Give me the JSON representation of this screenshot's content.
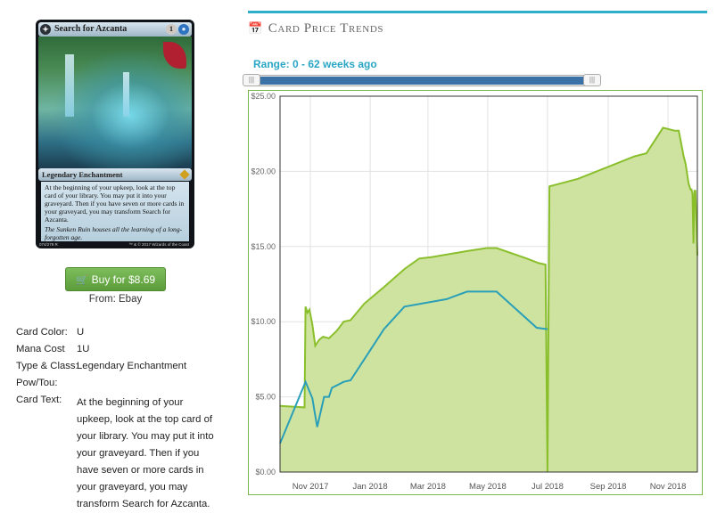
{
  "card": {
    "name": "Search for Azcanta",
    "mana_cost_symbols": [
      "1",
      "U"
    ],
    "type_line": "Legendary Enchantment",
    "rules_text": "At the beginning of your upkeep, look at the top card of your library. You may put it into your graveyard. Then if you have seven or more cards in your graveyard, you may transform Search for Azcanta.",
    "flavor_text": "The Sunken Ruin houses all the learning of a long-forgotten age.",
    "collector_number": "074/279 R",
    "copyright": "™ & © 2017 Wizards of the Coast",
    "icon": "compass-symbol-icon"
  },
  "buy": {
    "label": "Buy for $8.69",
    "icon": "cart-icon",
    "color": "#6aab48"
  },
  "from_label": "From: Ebay",
  "specs": {
    "color_label": "Card Color:",
    "color_value": "U",
    "mana_label": "Mana Cost",
    "mana_value": "1U",
    "type_label": "Type & Class:",
    "type_value": "Legendary Enchantment",
    "pow_label": "Pow/Tou:",
    "pow_value": "",
    "text_label": "Card Text:",
    "text_value": "At the beginning of your upkeep, look at the top card of your library. You may put it into your graveyard. Then if you have seven or more cards in your graveyard, you may transform Search for Azcanta."
  },
  "section": {
    "title": "Card Price Trends",
    "icon": "calendar-icon",
    "accent": "#2eaec9"
  },
  "range": {
    "label": "Range: 0 - 62 weeks ago",
    "min_weeks": 0,
    "max_weeks": 62
  },
  "chart_data": {
    "type": "area",
    "title": "",
    "xlabel": "",
    "ylabel": "",
    "ylim": [
      0,
      25
    ],
    "yticks": [
      "$0.00",
      "$5.00",
      "$10.00",
      "$15.00",
      "$20.00",
      "$25.00"
    ],
    "xticks": [
      "Nov 2017",
      "Jan 2018",
      "Mar 2018",
      "May 2018",
      "Jul 2018",
      "Sep 2018",
      "Nov 2018"
    ],
    "xlim": [
      "2017-10-01",
      "2018-12-01"
    ],
    "grid": true,
    "series": [
      {
        "style": "area",
        "color": "#8abf2c",
        "fill": "#cfe3a0",
        "points": [
          [
            "2017-10-01",
            4.4
          ],
          [
            "2017-10-26",
            4.3
          ],
          [
            "2017-10-27",
            11.0
          ],
          [
            "2017-10-29",
            10.6
          ],
          [
            "2017-10-31",
            10.8
          ],
          [
            "2017-11-03",
            9.8
          ],
          [
            "2017-11-06",
            8.4
          ],
          [
            "2017-11-10",
            8.8
          ],
          [
            "2017-11-14",
            9.0
          ],
          [
            "2017-11-20",
            8.9
          ],
          [
            "2017-11-28",
            9.4
          ],
          [
            "2017-12-05",
            10.0
          ],
          [
            "2017-12-12",
            10.1
          ],
          [
            "2017-12-26",
            11.2
          ],
          [
            "2018-01-15",
            12.3
          ],
          [
            "2018-02-05",
            13.5
          ],
          [
            "2018-02-20",
            14.2
          ],
          [
            "2018-03-05",
            14.3
          ],
          [
            "2018-04-10",
            14.7
          ],
          [
            "2018-04-30",
            14.9
          ],
          [
            "2018-05-10",
            14.9
          ],
          [
            "2018-06-10",
            14.2
          ],
          [
            "2018-06-22",
            13.9
          ],
          [
            "2018-06-29",
            13.8
          ],
          [
            "2018-07-01",
            0.0
          ],
          [
            "2018-07-03",
            19.0
          ],
          [
            "2018-08-01",
            19.5
          ],
          [
            "2018-09-01",
            20.3
          ],
          [
            "2018-09-28",
            21.0
          ],
          [
            "2018-10-10",
            21.2
          ],
          [
            "2018-10-27",
            22.9
          ],
          [
            "2018-11-08",
            22.7
          ],
          [
            "2018-11-12",
            22.7
          ],
          [
            "2018-11-17",
            21.0
          ],
          [
            "2018-11-19",
            20.5
          ],
          [
            "2018-11-22",
            19.2
          ],
          [
            "2018-11-24",
            18.8
          ],
          [
            "2018-11-25",
            18.8
          ],
          [
            "2018-11-26",
            18.5
          ],
          [
            "2018-11-27",
            15.2
          ],
          [
            "2018-11-28",
            18.7
          ],
          [
            "2018-11-29",
            18.7
          ],
          [
            "2018-12-01",
            14.4
          ]
        ]
      },
      {
        "style": "line",
        "color": "#2a9fb8",
        "points": [
          [
            "2017-10-01",
            1.9
          ],
          [
            "2017-10-27",
            6.0
          ],
          [
            "2017-11-03",
            4.9
          ],
          [
            "2017-11-05",
            4.1
          ],
          [
            "2017-11-08",
            3.0
          ],
          [
            "2017-11-15",
            5.0
          ],
          [
            "2017-11-20",
            5.0
          ],
          [
            "2017-11-23",
            5.6
          ],
          [
            "2017-12-05",
            6.0
          ],
          [
            "2017-12-12",
            6.1
          ],
          [
            "2017-12-26",
            7.5
          ],
          [
            "2018-01-15",
            9.5
          ],
          [
            "2018-02-05",
            11.0
          ],
          [
            "2018-03-20",
            11.5
          ],
          [
            "2018-04-10",
            12.0
          ],
          [
            "2018-05-10",
            12.0
          ],
          [
            "2018-06-20",
            9.6
          ],
          [
            "2018-07-01",
            9.5
          ]
        ]
      }
    ]
  }
}
